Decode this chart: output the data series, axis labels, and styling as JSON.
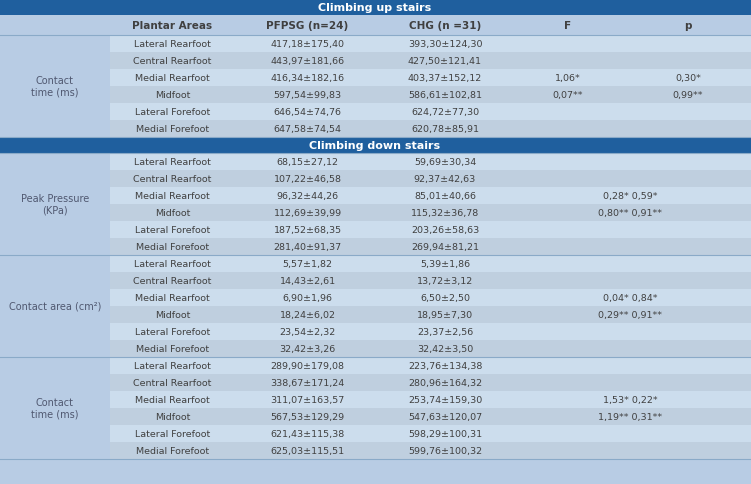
{
  "title": "Climbing up stairs",
  "title2": "Climbing down stairs",
  "header": [
    "Plantar Areas",
    "PFPSG (n=24)",
    "CHG (n =31)",
    "F",
    "p"
  ],
  "section1_label": "Contact\ntime (ms)",
  "section1_rows": [
    [
      "Lateral Rearfoot",
      "417,18±175,40",
      "393,30±124,30",
      "",
      ""
    ],
    [
      "Central Rearfoot",
      "443,97±181,66",
      "427,50±121,41",
      "",
      ""
    ],
    [
      "Medial Rearfoot",
      "416,34±182,16",
      "403,37±152,12",
      "1,06*",
      "0,30*"
    ],
    [
      "Midfoot",
      "597,54±99,83",
      "586,61±102,81",
      "0,07**",
      "0,99**"
    ],
    [
      "Lateral Forefoot",
      "646,54±74,76",
      "624,72±77,30",
      "",
      ""
    ],
    [
      "Medial Forefoot",
      "647,58±74,54",
      "620,78±85,91",
      "",
      ""
    ]
  ],
  "section2_label": "Peak Pressure\n(KPa)",
  "section2_rows": [
    [
      "Lateral Rearfoot",
      "68,15±27,12",
      "59,69±30,34"
    ],
    [
      "Central Rearfoot",
      "107,22±46,58",
      "92,37±42,63"
    ],
    [
      "Medial Rearfoot",
      "96,32±44,26",
      "85,01±40,66"
    ],
    [
      "Midfoot",
      "112,69±39,99",
      "115,32±36,78"
    ],
    [
      "Lateral Forefoot",
      "187,52±68,35",
      "203,26±58,63"
    ],
    [
      "Medial Forefoot",
      "281,40±91,37",
      "269,94±81,21"
    ]
  ],
  "section2_f_lines": [
    "0,28* 0,59*",
    "0,80** 0,91**"
  ],
  "section3_label": "Contact area (cm²)",
  "section3_rows": [
    [
      "Lateral Rearfoot",
      "5,57±1,82",
      "5,39±1,86"
    ],
    [
      "Central Rearfoot",
      "14,43±2,61",
      "13,72±3,12"
    ],
    [
      "Medial Rearfoot",
      "6,90±1,96",
      "6,50±2,50"
    ],
    [
      "Midfoot",
      "18,24±6,02",
      "18,95±7,30"
    ],
    [
      "Lateral Forefoot",
      "23,54±2,32",
      "23,37±2,56"
    ],
    [
      "Medial Forefoot",
      "32,42±3,26",
      "32,42±3,50"
    ]
  ],
  "section3_f_lines": [
    "0,04* 0,84*",
    "0,29** 0,91**"
  ],
  "section4_label": "Contact\ntime (ms)",
  "section4_rows": [
    [
      "Lateral Rearfoot",
      "289,90±179,08",
      "223,76±134,38"
    ],
    [
      "Central Rearfoot",
      "338,67±171,24",
      "280,96±164,32"
    ],
    [
      "Medial Rearfoot",
      "311,07±163,57",
      "253,74±159,30"
    ],
    [
      "Midfoot",
      "567,53±129,29",
      "547,63±120,07"
    ],
    [
      "Lateral Forefoot",
      "621,43±115,38",
      "598,29±100,31"
    ],
    [
      "Medial Forefoot",
      "625,03±115,51",
      "599,76±100,32"
    ]
  ],
  "section4_f_lines": [
    "1,53* 0,22*",
    "1,19** 0,31**"
  ],
  "bg_color": "#b8cce4",
  "header_bg": "#1f5f9e",
  "header_text": "#ffffff",
  "row_bg_even": "#ccdded",
  "row_bg_odd": "#bfcfdf",
  "label_bg": "#b8cce4",
  "text_color": "#404040",
  "label_color": "#505870",
  "divider_color": "#8aaac8",
  "header_divider": "#1f5f9e"
}
